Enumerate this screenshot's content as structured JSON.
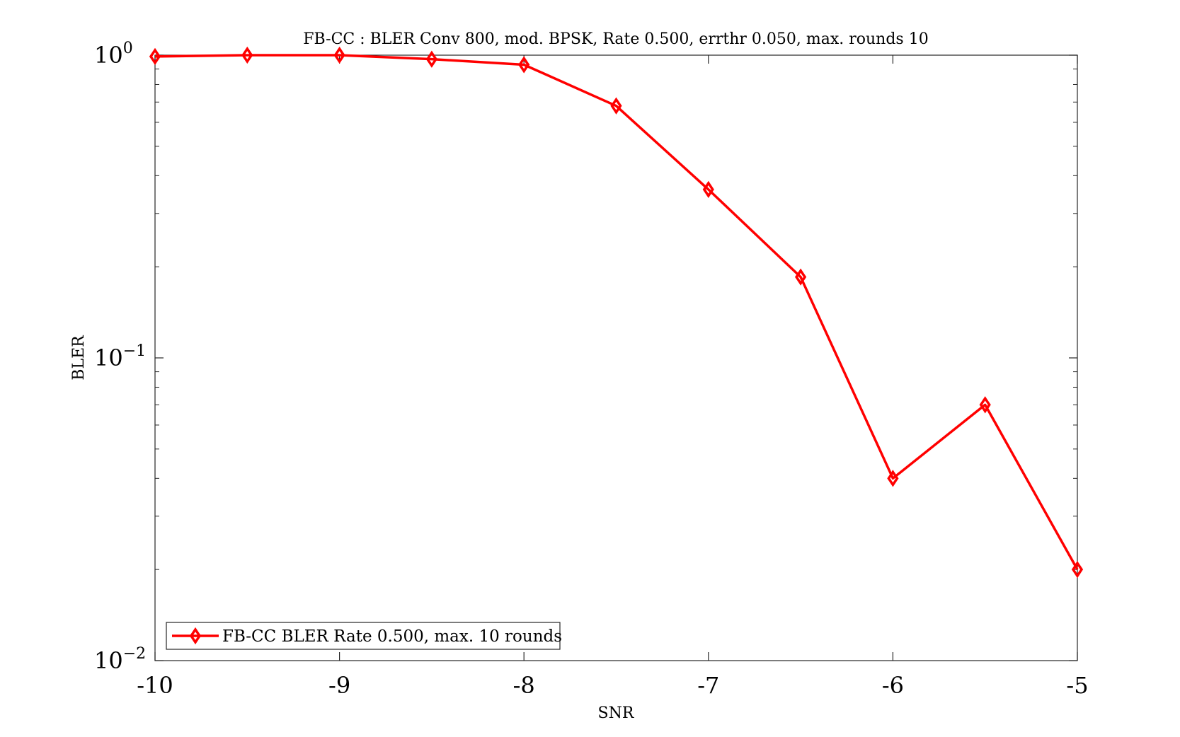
{
  "chart_data": {
    "type": "line",
    "title": "FB-CC : BLER Conv 800, mod. BPSK, Rate 0.500, errthr 0.050, max. rounds 10",
    "xlabel": "SNR",
    "ylabel": "BLER",
    "xlim": [
      -10,
      -5
    ],
    "ylim": [
      0.01,
      1
    ],
    "yscale": "log",
    "grid": false,
    "legend_position": "bottom-left",
    "x_ticks": [
      -10,
      -9,
      -8,
      -7,
      -6,
      -5
    ],
    "x_tick_labels": [
      "-10",
      "-9",
      "-8",
      "-7",
      "-6",
      "-5"
    ],
    "y_ticks": [
      {
        "value": 0.01,
        "base": "10",
        "exp": "−2"
      },
      {
        "value": 0.1,
        "base": "10",
        "exp": "−1"
      },
      {
        "value": 1,
        "base": "10",
        "exp": "0"
      }
    ],
    "series": [
      {
        "name": "FB-CC BLER Rate 0.500, max. 10 rounds",
        "color": "#ff0000",
        "marker": "diamond",
        "x": [
          -10,
          -9.5,
          -9,
          -8.5,
          -8,
          -7.5,
          -7,
          -6.5,
          -6,
          -5.5,
          -5
        ],
        "y": [
          0.99,
          1.0,
          1.0,
          0.97,
          0.93,
          0.68,
          0.36,
          0.185,
          0.04,
          0.07,
          0.02
        ]
      }
    ]
  }
}
